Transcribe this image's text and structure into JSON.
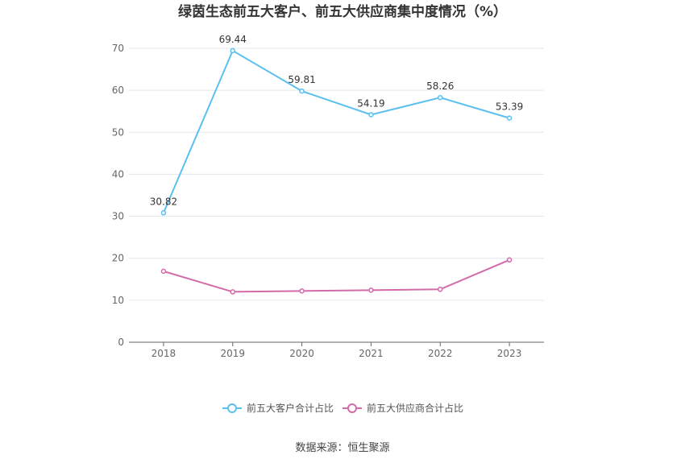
{
  "chart_data": {
    "type": "line",
    "title": "绿茵生态前五大客户、前五大供应商集中度情况（%）",
    "categories": [
      "2018",
      "2019",
      "2020",
      "2021",
      "2022",
      "2023"
    ],
    "series": [
      {
        "name": "前五大客户合计占比",
        "values": [
          30.82,
          69.44,
          59.81,
          54.19,
          58.26,
          53.39
        ],
        "color": "#5bc0f0",
        "show_labels": true
      },
      {
        "name": "前五大供应商合计占比",
        "values": [
          16.9,
          12.0,
          12.2,
          12.4,
          12.6,
          19.6
        ],
        "color": "#d36aa9",
        "show_labels": false
      }
    ],
    "ylim": [
      0,
      70
    ],
    "yticks": [
      0,
      10,
      20,
      30,
      40,
      50,
      60,
      70
    ],
    "grid": true,
    "legend_position": "bottom"
  },
  "data_labels": [
    "30.82",
    "69.44",
    "59.81",
    "54.19",
    "58.26",
    "53.39"
  ],
  "source": "数据来源：恒生聚源"
}
